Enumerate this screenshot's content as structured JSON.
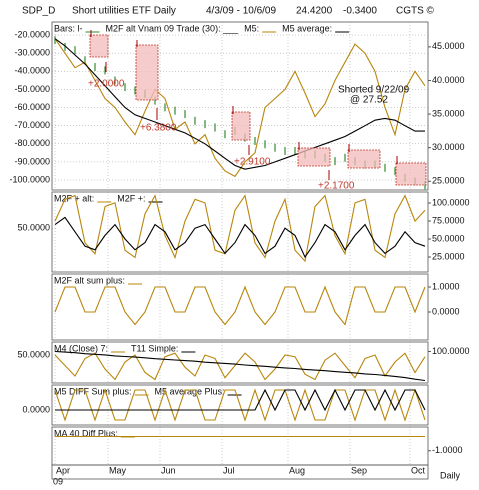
{
  "header": {
    "symbol": "SDP_D",
    "name": "Short utilities ETF Daily",
    "range": "4/3/09 - 10/6/09",
    "last": "24.4200",
    "change": "-0.3400",
    "brand": "CGTS ©"
  },
  "x_axis": {
    "categories": [
      "Apr",
      "May",
      "Jun",
      "Jul",
      "Aug",
      "Sep",
      "Oct"
    ],
    "year": "09",
    "frequency": "Daily"
  },
  "annotations": [
    "+2.0000",
    "+6.3800",
    "+2.9100",
    "+2.1700",
    "Shorted 9/22/09",
    "@ 27.52"
  ],
  "chart_data": [
    {
      "type": "line",
      "label": "M2F alt Vnam 09 Trade (30): ___",
      "ylim": [
        -105.5,
        -12.8
      ],
      "yticks": [
        {
          "value": -20,
          "label": "-20.0000"
        },
        {
          "value": -30,
          "label": "-30.0000"
        },
        {
          "value": -40,
          "label": "-40.0000"
        },
        {
          "value": -50,
          "label": "-50.0000"
        },
        {
          "value": -60,
          "label": "-60.0000"
        },
        {
          "value": -70,
          "label": "-70.0000"
        },
        {
          "value": -80,
          "label": "-80.0000"
        },
        {
          "value": -90,
          "label": "-90.0000"
        },
        {
          "value": -100,
          "label": "-100.0000"
        }
      ],
      "y2lim": [
        23.7,
        48.7
      ],
      "y2ticks": [
        {
          "value": 45,
          "label": "45.0000"
        },
        {
          "value": 40,
          "label": "40.0000"
        },
        {
          "value": 35,
          "label": "35.0000"
        },
        {
          "value": 30,
          "label": "30.0000"
        },
        {
          "value": 25,
          "label": "25.0000"
        }
      ],
      "grid": true,
      "series": [
        {
          "name": "Bars: l-",
          "color": "#2e8b2e",
          "mark": "bar",
          "axis": "y2",
          "values": [
            46,
            45,
            44.5,
            43,
            42,
            41.5,
            40,
            39,
            38.5,
            38,
            37,
            36,
            35.5,
            35,
            34,
            33.5,
            33,
            32,
            32.5,
            31.5,
            31,
            30.5,
            30,
            29.5,
            29.5,
            29,
            29,
            28.5,
            28,
            28.5,
            28,
            27.5,
            27.5,
            27,
            26.5,
            25.5,
            25,
            24.4
          ]
        },
        {
          "name": "M5:",
          "color": "#b8860b",
          "values": [
            -22,
            -30,
            -38,
            -35,
            -45,
            -55,
            -60,
            -68,
            -75,
            -62,
            -50,
            -55,
            -72,
            -68,
            -80,
            -75,
            -88,
            -95,
            -98,
            -90,
            -85,
            -60,
            -55,
            -50,
            -40,
            -52,
            -65,
            -58,
            -45,
            -35,
            -25,
            -30,
            -40,
            -60,
            -75,
            -50,
            -40,
            -48
          ]
        },
        {
          "name": "M5 average:",
          "color": "#000000",
          "values": [
            -22,
            -26,
            -31,
            -36,
            -42,
            -48,
            -54,
            -60,
            -64,
            -66,
            -68,
            -70,
            -72,
            -74,
            -77,
            -80,
            -84,
            -88,
            -92,
            -94,
            -93,
            -92,
            -90,
            -88,
            -86,
            -84,
            -82,
            -80,
            -78,
            -76,
            -73,
            -70,
            -67,
            -66,
            -67,
            -70,
            -73,
            -73
          ]
        }
      ]
    },
    {
      "type": "line",
      "ylim": [
        -10,
        100
      ],
      "yticks": [
        {
          "value": 50,
          "label": "50.0000"
        }
      ],
      "y2lim": [
        4.2,
        115.3
      ],
      "y2ticks": [
        {
          "value": 100,
          "label": "100.0000"
        },
        {
          "value": 75,
          "label": "75.0000"
        },
        {
          "value": 50,
          "label": "50.0000"
        },
        {
          "value": 25,
          "label": "25.0000"
        }
      ],
      "series": [
        {
          "name": "M2F + alt:",
          "color": "#b8860b",
          "values": [
            60,
            90,
            95,
            30,
            15,
            80,
            85,
            20,
            10,
            70,
            95,
            40,
            10,
            60,
            90,
            85,
            20,
            15,
            75,
            95,
            30,
            10,
            60,
            90,
            20,
            5,
            80,
            95,
            40,
            15,
            85,
            90,
            20,
            10,
            70,
            95,
            60,
            75
          ]
        },
        {
          "name": "M2F +:",
          "color": "#000000",
          "axis": "y2",
          "values": [
            70,
            80,
            60,
            40,
            35,
            55,
            70,
            50,
            35,
            45,
            70,
            60,
            35,
            45,
            65,
            70,
            50,
            30,
            45,
            70,
            55,
            30,
            40,
            65,
            55,
            25,
            45,
            70,
            60,
            35,
            55,
            70,
            45,
            30,
            40,
            60,
            45,
            40
          ]
        }
      ]
    },
    {
      "type": "line",
      "y2lim": [
        -1.12,
        1.52
      ],
      "y2ticks": [
        {
          "value": 1,
          "label": "1.0000"
        },
        {
          "value": 0,
          "label": "0.0000"
        }
      ],
      "series": [
        {
          "name": "M2F alt sum plus:",
          "color": "#b8860b",
          "axis": "y2",
          "values": [
            0,
            1,
            1,
            0,
            0,
            1,
            1,
            0,
            -0.5,
            0,
            1,
            1,
            0,
            0,
            1,
            1,
            0,
            -0.5,
            0,
            1,
            0,
            -0.5,
            0,
            1,
            1,
            0,
            0,
            1,
            0,
            -0.5,
            1,
            1,
            0,
            0,
            1,
            1,
            0,
            1
          ]
        }
      ]
    },
    {
      "type": "line",
      "ylim": [
        -30,
        87
      ],
      "yticks": [
        {
          "value": 50,
          "label": "50.0000"
        }
      ],
      "y2lim": [
        0,
        130
      ],
      "y2ticks": [
        {
          "value": 100,
          "label": "100.0000"
        }
      ],
      "series": [
        {
          "name": "M4 (Close) 7:",
          "color": "#b8860b",
          "values": [
            50,
            20,
            -10,
            40,
            55,
            10,
            -20,
            30,
            50,
            0,
            -20,
            45,
            55,
            15,
            -10,
            50,
            40,
            -15,
            20,
            55,
            30,
            -20,
            10,
            50,
            45,
            -5,
            -20,
            35,
            55,
            20,
            -15,
            40,
            50,
            -10,
            30,
            55,
            0,
            45
          ]
        },
        {
          "name": "T11 Simple:",
          "color": "#000000",
          "axis": "y2",
          "values": [
            100,
            98,
            96,
            93,
            91,
            89,
            86,
            84,
            82,
            80,
            77,
            75,
            73,
            71,
            69,
            66,
            64,
            62,
            60,
            57,
            55,
            53,
            50,
            48,
            46,
            43,
            41,
            39,
            36,
            34,
            32,
            29,
            27,
            24,
            21,
            17,
            12,
            8
          ]
        }
      ]
    },
    {
      "type": "line",
      "ylim": [
        -0.6,
        1
      ],
      "yticks": [
        {
          "value": 0,
          "label": "0.0000"
        }
      ],
      "series": [
        {
          "name": "M5 DIFF Sum plus:",
          "color": "#b8860b",
          "values": [
            0.8,
            -0.4,
            0.8,
            0.8,
            -0.4,
            0.8,
            -0.4,
            -0.4,
            0.8,
            0.8,
            -0.4,
            0.8,
            -0.4,
            0.8,
            0.8,
            -0.4,
            -0.4,
            0.8,
            0.8,
            -0.4,
            0.8,
            -0.4,
            0.8,
            0.8,
            -0.4,
            0.8,
            -0.4,
            -0.4,
            0.8,
            0.8,
            -0.4,
            0.8,
            0.8,
            -0.4,
            0.8,
            -0.4,
            0.8,
            -0.4
          ]
        },
        {
          "name": "M5 average Plus:",
          "color": "#000000",
          "values": [
            0,
            0,
            0,
            0,
            0,
            0,
            0,
            0,
            0,
            0,
            0,
            0,
            0,
            0,
            0,
            0,
            0,
            0,
            0,
            0,
            0,
            0.8,
            0,
            0.8,
            0.8,
            0,
            0.8,
            0,
            0.8,
            0,
            0.8,
            0.8,
            0,
            0.8,
            0,
            0.8,
            0.8,
            0
          ]
        }
      ]
    },
    {
      "type": "line",
      "y2lim": [
        -1.6,
        0
      ],
      "y2ticks": [
        {
          "value": -1,
          "label": "-1.0000"
        }
      ],
      "series": [
        {
          "name": "MA 40 Diff Plus:",
          "color": "#b8860b",
          "axis": "y2",
          "values": [
            -0.4,
            -0.4,
            -0.4,
            -0.4,
            -0.4,
            -0.4,
            -0.4,
            -0.4,
            -0.4,
            -0.4
          ]
        }
      ]
    }
  ]
}
